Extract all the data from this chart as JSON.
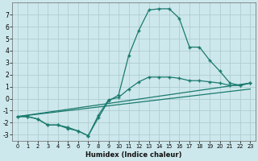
{
  "xlabel": "Humidex (Indice chaleur)",
  "background_color": "#cde8ec",
  "grid_color": "#b8d8dc",
  "line_color": "#1a7a6e",
  "xlim": [
    -0.5,
    23.5
  ],
  "ylim": [
    -3.5,
    8.0
  ],
  "xticks": [
    0,
    1,
    2,
    3,
    4,
    5,
    6,
    7,
    8,
    9,
    10,
    11,
    12,
    13,
    14,
    15,
    16,
    17,
    18,
    19,
    20,
    21,
    22,
    23
  ],
  "yticks": [
    -3,
    -2,
    -1,
    0,
    1,
    2,
    3,
    4,
    5,
    6,
    7
  ],
  "line1_x": [
    0,
    1,
    2,
    3,
    4,
    5,
    6,
    7,
    8,
    9,
    10,
    11,
    12,
    13,
    14,
    15,
    16,
    17,
    18,
    19,
    20,
    21,
    22,
    23
  ],
  "line1_y": [
    -1.5,
    -1.5,
    -1.7,
    -2.2,
    -2.2,
    -2.5,
    -2.7,
    -3.1,
    -1.6,
    -0.2,
    0.3,
    3.6,
    5.7,
    7.4,
    7.5,
    7.5,
    6.7,
    4.3,
    4.3,
    3.2,
    2.3,
    1.3,
    1.1,
    1.3
  ],
  "line2_x": [
    0,
    1,
    2,
    3,
    4,
    5,
    6,
    7,
    8,
    9,
    10,
    11,
    12,
    13,
    14,
    15,
    16,
    17,
    18,
    19,
    20,
    21,
    22,
    23
  ],
  "line2_y": [
    -1.5,
    -1.5,
    -1.7,
    -2.2,
    -2.2,
    -2.4,
    -2.7,
    -3.1,
    -1.4,
    -0.1,
    0.1,
    0.8,
    1.4,
    1.8,
    1.8,
    1.8,
    1.7,
    1.5,
    1.5,
    1.4,
    1.3,
    1.1,
    1.1,
    1.3
  ],
  "line3_x": [
    0,
    23
  ],
  "line3_y": [
    -1.5,
    1.3
  ],
  "line4_x": [
    0,
    23
  ],
  "line4_y": [
    -1.5,
    0.8
  ]
}
